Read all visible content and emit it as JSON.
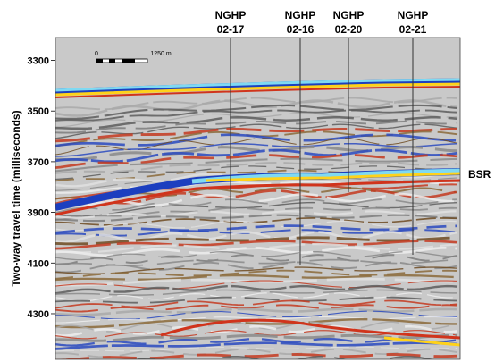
{
  "y_axis": {
    "label": "Two-way travel time (milliseconds)",
    "ylim": [
      3210,
      4480
    ],
    "ticks": [
      3300,
      3500,
      3700,
      3900,
      4100,
      4300
    ]
  },
  "wells": [
    {
      "name": "NGHP",
      "id": "02-17"
    },
    {
      "name": "NGHP",
      "id": "02-16"
    },
    {
      "name": "NGHP",
      "id": "02-20"
    },
    {
      "name": "NGHP",
      "id": "02-21"
    }
  ],
  "scale_bar": {
    "start": "0",
    "end": "1250 m"
  },
  "annotation": "BSR"
}
